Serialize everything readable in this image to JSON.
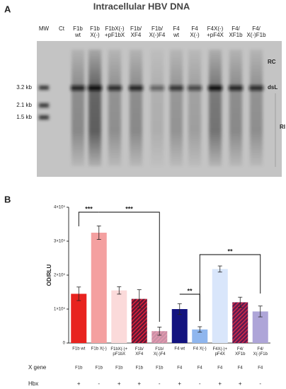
{
  "panel_a": {
    "letter": "A",
    "title": "Intracellular HBV DNA",
    "lanes": [
      "MW",
      "Ct",
      "F1b\nwt",
      "F1b\nX(-)",
      "F1bX(-)\n+pF1bX",
      "F1b/\nXF4",
      "F1b/\nX(-)F4",
      "F4\nwt",
      "F4\nX(-)",
      "F4X(-)\n+pF4X",
      "F4/\nXF1b",
      "F4/\nX(-)F1b"
    ],
    "markers": [
      "3.2 kb",
      "2.1 kb",
      "1.5 kb"
    ],
    "bands": [
      "RC",
      "dsL",
      "RI"
    ]
  },
  "chart_data": {
    "type": "bar",
    "letter": "B",
    "y_label": "OD/RLU",
    "categories": [
      "F1b wt",
      "F1b X(-)",
      "F1bX(-)+\npF1bX",
      "F1b/\nXF4",
      "F1b/\nX(-)F4",
      "F4 wt",
      "F4 X(-)",
      "F4X(-)+\npF4X",
      "F4/\nXF1b",
      "F4/\nX(-)F1b"
    ],
    "values": [
      145000,
      325000,
      155000,
      130000,
      35000,
      100000,
      40000,
      218000,
      120000,
      93000
    ],
    "errors": [
      20000,
      20000,
      11000,
      27000,
      12000,
      16000,
      8000,
      9000,
      15000,
      16000
    ],
    "colors": [
      "#e8231f",
      "#f4a0a0",
      "#fbdada",
      "#5a1634",
      "#c98fa6",
      "#13137f",
      "#8fb6ee",
      "#d9e6fb",
      "#5a1a50",
      "#aea5d8"
    ],
    "hatch": [
      null,
      null,
      null,
      "#e0203a",
      "#e49aae",
      null,
      null,
      null,
      "#d02a4a",
      null
    ],
    "ylim": [
      0,
      400000
    ],
    "yticks": [
      {
        "value": 0,
        "label": "0"
      },
      {
        "value": 100000,
        "label": "1×10⁵"
      },
      {
        "value": 200000,
        "label": "2×10⁵"
      },
      {
        "value": 300000,
        "label": "3×10⁵"
      },
      {
        "value": 400000,
        "label": "4×10⁵"
      }
    ],
    "annotations": [
      "***",
      "***",
      "**",
      "**"
    ],
    "x_gene": {
      "label": "X gene",
      "values": [
        "F1b",
        "F1b",
        "F1b",
        "F1b",
        "F1b",
        "F4",
        "F4",
        "F4",
        "F4",
        "F4"
      ]
    },
    "hbx": {
      "label": "Hbx",
      "values": [
        "+",
        "-",
        "+",
        "+",
        "-",
        "+",
        "-",
        "+",
        "+",
        "-"
      ]
    }
  }
}
